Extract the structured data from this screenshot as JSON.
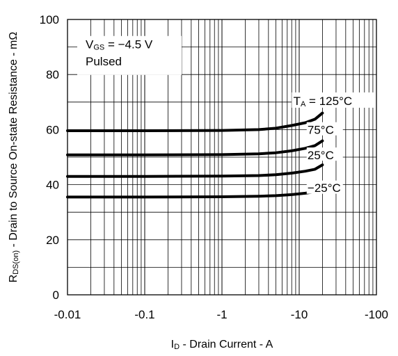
{
  "chart_data": {
    "type": "line",
    "title": "",
    "xlabel": {
      "symbol": "I",
      "sub": "D",
      "text": " - Drain Current - A"
    },
    "ylabel": {
      "symbol": "R",
      "sub": "DS(on)",
      "text": " - Drain to Source On-state Resistance - mΩ"
    },
    "x_scale": "log",
    "x_negative": true,
    "xlim": [
      0.01,
      100
    ],
    "ylim": [
      0,
      100
    ],
    "x_ticks": [
      0.01,
      0.1,
      1,
      10,
      100
    ],
    "x_tick_labels": [
      "-0.01",
      "-0.1",
      "-1",
      "-10",
      "-100"
    ],
    "y_ticks": [
      0,
      20,
      40,
      60,
      80,
      100
    ],
    "y_tick_labels": [
      "0",
      "20",
      "40",
      "60",
      "80",
      "100"
    ],
    "grid": true,
    "annotations": {
      "vgs_symbol": "V",
      "vgs_sub": "GS",
      "vgs_text": " = −4.5 V",
      "pulsed": "Pulsed",
      "ta_symbol": "T",
      "ta_sub": "A"
    },
    "series": [
      {
        "name": " = 125°C",
        "x": [
          0.01,
          0.1,
          1,
          3,
          5,
          8,
          12,
          16,
          20
        ],
        "values": [
          59.6,
          59.6,
          59.7,
          60.0,
          60.5,
          61.5,
          62.5,
          63.8,
          66.0
        ]
      },
      {
        "name": "75°C",
        "x": [
          0.01,
          0.1,
          1,
          3,
          5,
          8,
          12,
          16,
          20
        ],
        "values": [
          50.8,
          50.8,
          50.9,
          51.2,
          51.6,
          52.3,
          53.2,
          54.2,
          55.9
        ]
      },
      {
        "name": "25°C",
        "x": [
          0.01,
          0.1,
          1,
          3,
          5,
          8,
          12,
          16,
          20
        ],
        "values": [
          43.0,
          43.0,
          43.1,
          43.3,
          43.6,
          44.2,
          44.9,
          45.6,
          47.2
        ]
      },
      {
        "name": "−25°C",
        "x": [
          0.01,
          0.1,
          1,
          3,
          5,
          8,
          12,
          16,
          20
        ],
        "values": [
          35.5,
          35.5,
          35.6,
          35.8,
          36.0,
          36.4,
          36.9,
          37.4,
          38.4
        ]
      }
    ],
    "colors": {
      "line": "#000000",
      "grid": "#000000",
      "background": "#ffffff"
    }
  }
}
